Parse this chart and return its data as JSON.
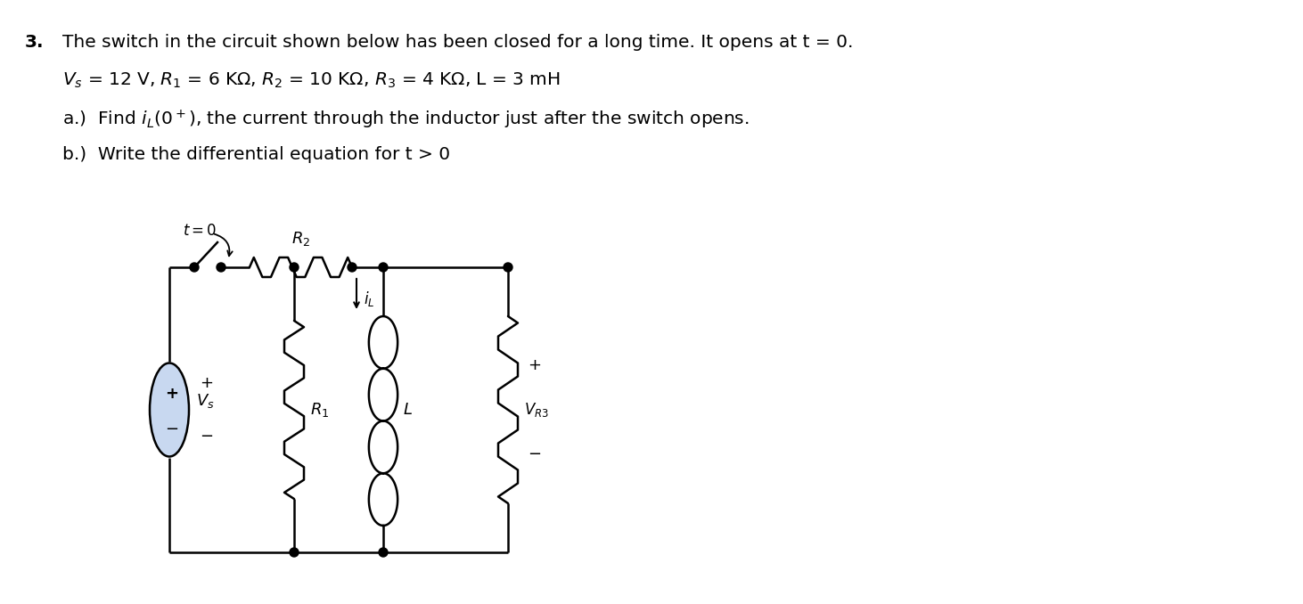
{
  "background_color": "#ffffff",
  "text_color": "#000000",
  "circuit_color": "#000000",
  "vs_fill": "#c8d8f0",
  "line1_num": "3.",
  "line1_text": "The switch in the circuit shown below has been closed for a long time. It opens at t = 0.",
  "line2_text": "V_s = 12 V, R_1 = 6 KΩ, R_2 = 10 KΩ, R_3 = 4 KΩ, L = 3 mH",
  "line3_text": "a.)  Find i_L(0+), the current through the inductor just after the switch opens.",
  "line4_text": "b.)  Write the differential equation for t > 0",
  "font_size": 14.5,
  "font_family": "DejaVu Sans"
}
